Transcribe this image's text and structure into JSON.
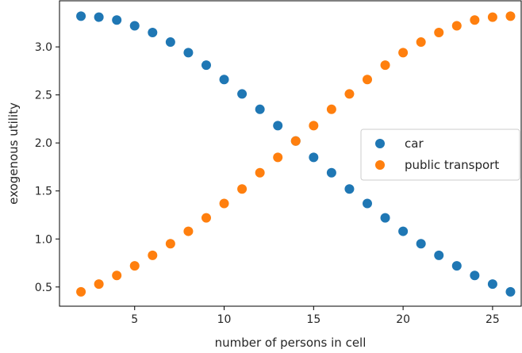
{
  "chart_data": {
    "type": "scatter",
    "xlabel": "number of persons in cell",
    "ylabel": "exogenous utility",
    "xlim": [
      0.8,
      26.6
    ],
    "ylim": [
      0.3,
      3.48
    ],
    "xticks": [
      5,
      10,
      15,
      20,
      25
    ],
    "xtick_labels": [
      "5",
      "10",
      "15",
      "20",
      "25"
    ],
    "yticks": [
      0.5,
      1.0,
      1.5,
      2.0,
      2.5,
      3.0
    ],
    "ytick_labels": [
      "0.5",
      "1.0",
      "1.5",
      "2.0",
      "2.5",
      "3.0"
    ],
    "grid": false,
    "legend_position": "center-right",
    "x": [
      2,
      3,
      4,
      5,
      6,
      7,
      8,
      9,
      10,
      11,
      12,
      13,
      14,
      15,
      16,
      17,
      18,
      19,
      20,
      21,
      22,
      23,
      24,
      25,
      26
    ],
    "series": [
      {
        "name": "car",
        "color": "#1f77b4",
        "values": [
          3.32,
          3.31,
          3.28,
          3.22,
          3.15,
          3.05,
          2.94,
          2.81,
          2.66,
          2.51,
          2.35,
          2.18,
          2.02,
          1.85,
          1.69,
          1.52,
          1.37,
          1.22,
          1.08,
          0.95,
          0.83,
          0.72,
          0.62,
          0.53,
          0.45
        ]
      },
      {
        "name": "public transport",
        "color": "#ff7f0e",
        "values": [
          0.45,
          0.53,
          0.62,
          0.72,
          0.83,
          0.95,
          1.08,
          1.22,
          1.37,
          1.52,
          1.69,
          1.85,
          2.02,
          2.18,
          2.35,
          2.51,
          2.66,
          2.81,
          2.94,
          3.05,
          3.15,
          3.22,
          3.28,
          3.31,
          3.32
        ]
      }
    ]
  }
}
